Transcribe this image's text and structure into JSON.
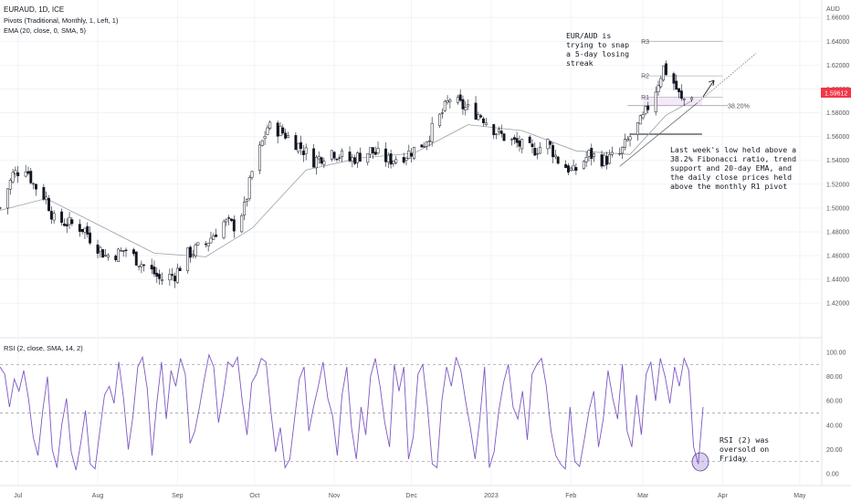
{
  "chart_data": [
    {
      "type": "candlestick",
      "header": {
        "symbol": "EURAUD, 1D, ICE",
        "pivots": "Pivots (Traditional, Monthly, 1, Left, 1)",
        "ema": "EMA (20, close, 0, SMA, 5)"
      },
      "currency": "AUD",
      "price_axis_ticks": [
        "1.66000",
        "1.64000",
        "1.62000",
        "1.60000",
        "1.58000",
        "1.56000",
        "1.54000",
        "1.52000",
        "1.50000",
        "1.48000",
        "1.46000",
        "1.44000",
        "1.42000"
      ],
      "ylim": [
        1.41,
        1.665
      ],
      "last_price": "1.59612",
      "pivot_levels": [
        {
          "name": "R3",
          "value": 1.64
        },
        {
          "name": "R2",
          "value": 1.611
        },
        {
          "name": "R1",
          "value": 1.593
        }
      ],
      "fib_label": "38.20%",
      "fib_value": 1.586,
      "support_line_value": 1.562,
      "close_path": [
        {
          "date": "2022-06-24",
          "close": 1.5
        },
        {
          "date": "2022-06-29",
          "close": 1.528
        },
        {
          "date": "2022-07-04",
          "close": 1.535
        },
        {
          "date": "2022-07-07",
          "close": 1.52
        },
        {
          "date": "2022-07-12",
          "close": 1.508
        },
        {
          "date": "2022-07-15",
          "close": 1.49
        },
        {
          "date": "2022-07-21",
          "close": 1.487
        },
        {
          "date": "2022-07-27",
          "close": 1.482
        },
        {
          "date": "2022-07-29",
          "close": 1.475
        },
        {
          "date": "2022-08-04",
          "close": 1.46
        },
        {
          "date": "2022-08-09",
          "close": 1.462
        },
        {
          "date": "2022-08-12",
          "close": 1.465
        },
        {
          "date": "2022-08-17",
          "close": 1.455
        },
        {
          "date": "2022-08-23",
          "close": 1.445
        },
        {
          "date": "2022-08-25",
          "close": 1.44
        },
        {
          "date": "2022-08-31",
          "close": 1.444
        },
        {
          "date": "2022-09-05",
          "close": 1.461
        },
        {
          "date": "2022-09-12",
          "close": 1.47
        },
        {
          "date": "2022-09-19",
          "close": 1.488
        },
        {
          "date": "2022-09-23",
          "close": 1.485
        },
        {
          "date": "2022-09-27",
          "close": 1.5
        },
        {
          "date": "2022-09-30",
          "close": 1.53
        },
        {
          "date": "2022-10-06",
          "close": 1.568
        },
        {
          "date": "2022-10-11",
          "close": 1.565
        },
        {
          "date": "2022-10-17",
          "close": 1.555
        },
        {
          "date": "2022-10-24",
          "close": 1.54
        },
        {
          "date": "2022-10-31",
          "close": 1.548
        },
        {
          "date": "2022-11-07",
          "close": 1.54
        },
        {
          "date": "2022-11-15",
          "close": 1.548
        },
        {
          "date": "2022-11-22",
          "close": 1.54
        },
        {
          "date": "2022-11-29",
          "close": 1.545
        },
        {
          "date": "2022-12-06",
          "close": 1.555
        },
        {
          "date": "2022-12-13",
          "close": 1.58
        },
        {
          "date": "2022-12-16",
          "close": 1.592
        },
        {
          "date": "2022-12-21",
          "close": 1.585
        },
        {
          "date": "2022-12-28",
          "close": 1.578
        },
        {
          "date": "2023-01-04",
          "close": 1.562
        },
        {
          "date": "2023-01-10",
          "close": 1.555
        },
        {
          "date": "2023-01-17",
          "close": 1.548
        },
        {
          "date": "2023-01-23",
          "close": 1.555
        },
        {
          "date": "2023-01-27",
          "close": 1.54
        },
        {
          "date": "2023-02-02",
          "close": 1.53
        },
        {
          "date": "2023-02-08",
          "close": 1.545
        },
        {
          "date": "2023-02-14",
          "close": 1.54
        },
        {
          "date": "2023-02-20",
          "close": 1.545
        },
        {
          "date": "2023-02-24",
          "close": 1.56
        },
        {
          "date": "2023-03-01",
          "close": 1.575
        },
        {
          "date": "2023-03-06",
          "close": 1.6
        },
        {
          "date": "2023-03-09",
          "close": 1.618
        },
        {
          "date": "2023-03-13",
          "close": 1.605
        },
        {
          "date": "2023-03-16",
          "close": 1.59
        },
        {
          "date": "2023-03-20",
          "close": 1.596
        }
      ],
      "ema_path": [
        {
          "date": "2022-06-24",
          "value": 1.498
        },
        {
          "date": "2022-07-12",
          "value": 1.508
        },
        {
          "date": "2022-08-02",
          "value": 1.485
        },
        {
          "date": "2022-08-23",
          "value": 1.462
        },
        {
          "date": "2022-09-12",
          "value": 1.459
        },
        {
          "date": "2022-09-30",
          "value": 1.483
        },
        {
          "date": "2022-10-21",
          "value": 1.532
        },
        {
          "date": "2022-11-11",
          "value": 1.542
        },
        {
          "date": "2022-12-02",
          "value": 1.546
        },
        {
          "date": "2022-12-23",
          "value": 1.57
        },
        {
          "date": "2023-01-13",
          "value": 1.565
        },
        {
          "date": "2023-02-03",
          "value": 1.548
        },
        {
          "date": "2023-02-24",
          "value": 1.545
        },
        {
          "date": "2023-03-10",
          "value": 1.578
        },
        {
          "date": "2023-03-20",
          "value": 1.59
        }
      ],
      "annotations": [
        "EUR/AUD is trying to snap a 5-day losing streak",
        "Last week's low held above a 38.2% Fibonacci ratio, trend support and 20-day EMA, and the daily close prices held above the monthly R1 pivot"
      ]
    },
    {
      "type": "line",
      "title": "RSI (2, close, SMA, 14, 2)",
      "y_ticks": [
        "100.00",
        "80.00",
        "60.00",
        "40.00",
        "20.00",
        "0.00"
      ],
      "ylim": [
        -5,
        105
      ],
      "levels": [
        90,
        50,
        10
      ],
      "values": [
        88,
        82,
        55,
        78,
        68,
        85,
        62,
        30,
        15,
        52,
        80,
        20,
        5,
        40,
        62,
        18,
        3,
        25,
        52,
        8,
        4,
        35,
        65,
        72,
        58,
        92,
        62,
        20,
        48,
        88,
        96,
        70,
        15,
        58,
        92,
        45,
        85,
        72,
        95,
        82,
        25,
        35,
        55,
        78,
        98,
        88,
        42,
        65,
        92,
        88,
        96,
        60,
        32,
        75,
        82,
        95,
        92,
        52,
        18,
        38,
        5,
        12,
        45,
        78,
        88,
        35,
        55,
        72,
        92,
        62,
        48,
        15,
        65,
        88,
        38,
        12,
        55,
        32,
        80,
        95,
        72,
        42,
        22,
        90,
        68,
        88,
        12,
        30,
        82,
        90,
        55,
        8,
        5,
        60,
        88,
        72,
        96,
        85,
        60,
        38,
        12,
        45,
        88,
        5,
        18,
        52,
        75,
        90,
        55,
        45,
        68,
        28,
        82,
        90,
        95,
        72,
        35,
        15,
        8,
        4,
        55,
        10,
        6,
        28,
        52,
        68,
        22,
        45,
        85,
        62,
        45,
        90,
        35,
        22,
        65,
        32,
        82,
        92,
        60,
        95,
        80,
        58,
        88,
        72,
        95,
        85,
        22,
        8,
        55
      ],
      "annotation": "RSI (2) was oversold on Friday"
    }
  ],
  "x_axis": {
    "months": [
      "Jul",
      "Aug",
      "Sep",
      "Oct",
      "Nov",
      "Dec",
      "2023",
      "Feb",
      "Mar",
      "Apr",
      "May"
    ],
    "month_dates": [
      "2022-07-01",
      "2022-08-01",
      "2022-09-01",
      "2022-10-01",
      "2022-11-01",
      "2022-12-01",
      "2023-01-01",
      "2023-02-01",
      "2023-03-01",
      "2023-04-01",
      "2023-05-01"
    ]
  },
  "colors": {
    "up": "#26a69a",
    "down": "#131722",
    "ema": "#9aa0a6",
    "rsi": "#7e57c2",
    "price_badge": "#f23645"
  }
}
